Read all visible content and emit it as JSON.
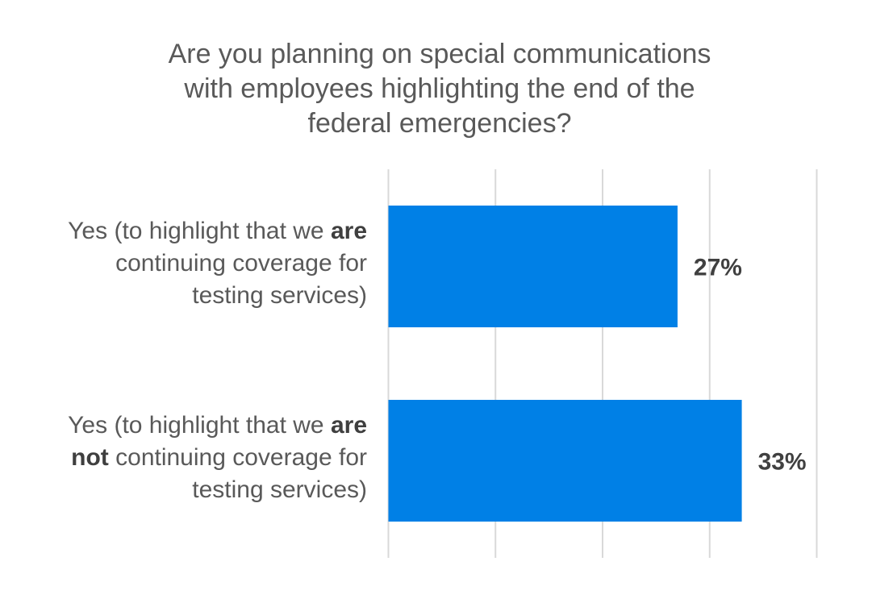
{
  "chart_data": {
    "type": "bar",
    "orientation": "horizontal",
    "title_lines": [
      "Are you planning on special communications",
      "with employees highlighting the end of the",
      "federal emergencies?"
    ],
    "categories": [
      {
        "lines": [
          [
            {
              "text": "Yes (to highlight that we ",
              "bold": false
            },
            {
              "text": "are",
              "bold": true
            }
          ],
          [
            {
              "text": "continuing coverage for",
              "bold": false
            }
          ],
          [
            {
              "text": "testing services)",
              "bold": false
            }
          ]
        ]
      },
      {
        "lines": [
          [
            {
              "text": "Yes (to highlight that we ",
              "bold": false
            },
            {
              "text": "are",
              "bold": true
            }
          ],
          [
            {
              "text": "not",
              "bold": true
            },
            {
              "text": " continuing coverage for",
              "bold": false
            }
          ],
          [
            {
              "text": "testing services)",
              "bold": false
            }
          ]
        ]
      }
    ],
    "values": [
      27,
      33
    ],
    "value_labels": [
      "27%",
      "33%"
    ],
    "xlim": [
      0,
      40
    ],
    "gridlines": [
      0,
      10,
      20,
      30,
      40
    ],
    "grid": true,
    "legend": "none",
    "bar_color": "#0080e6",
    "grid_color": "#d9d9d9",
    "label_color": "#404040"
  }
}
